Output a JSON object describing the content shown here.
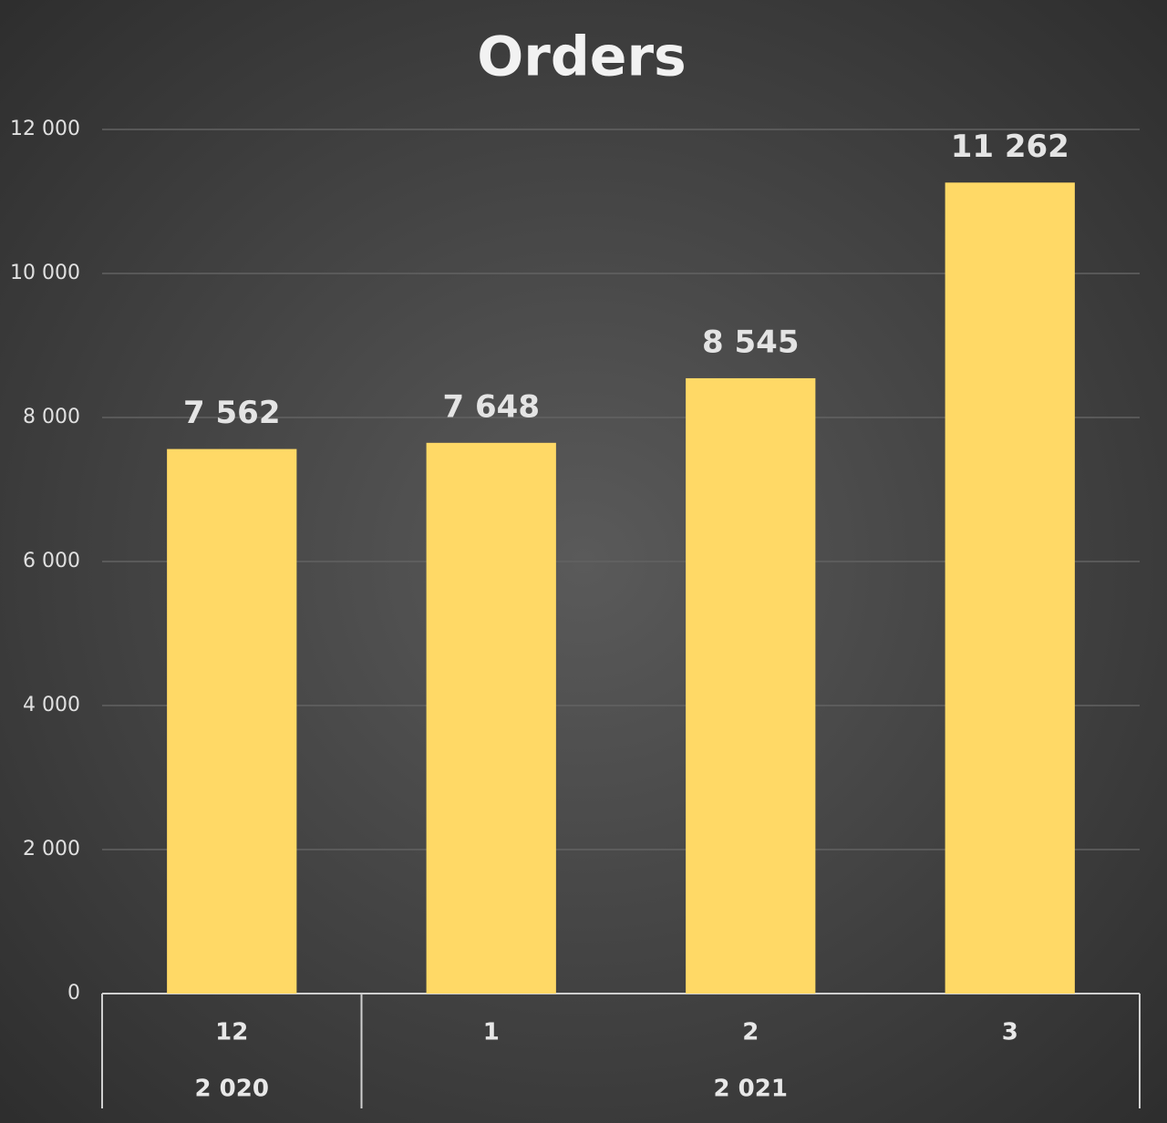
{
  "chart_data": {
    "type": "bar",
    "title": "Orders",
    "groups": [
      {
        "label": "2 020",
        "categories": [
          "12"
        ]
      },
      {
        "label": "2 021",
        "categories": [
          "1",
          "2",
          "3"
        ]
      }
    ],
    "values": [
      7562,
      7648,
      8545,
      11262
    ],
    "value_labels": [
      "7 562",
      "7 648",
      "8 545",
      "11 262"
    ],
    "color": "#ffd966",
    "ylim": [
      0,
      12000
    ],
    "yticks": [
      0,
      {
        "value": 2000,
        "label": "2 000"
      },
      {
        "value": 4000,
        "label": "4 000"
      },
      {
        "value": 6000,
        "label": "6 000"
      },
      {
        "value": 8000,
        "label": "8 000"
      },
      {
        "value": 10000,
        "label": "10 000"
      },
      {
        "value": 12000,
        "label": "12 000"
      }
    ],
    "grid": true
  }
}
